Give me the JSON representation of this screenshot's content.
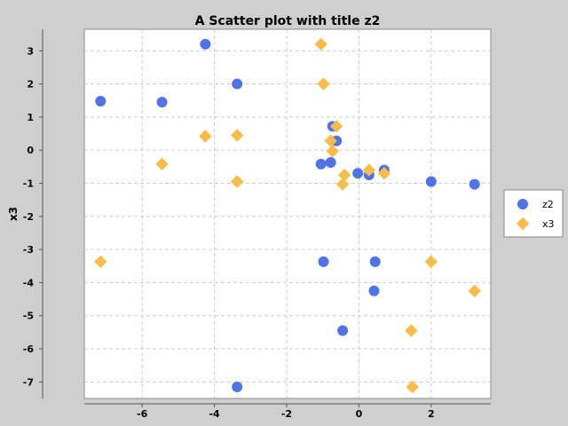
{
  "chart_data": {
    "type": "scatter",
    "title": "A Scatter plot with title z2",
    "xlabel": "",
    "ylabel": "x3",
    "xlim": [
      -7.6,
      3.65
    ],
    "ylim": [
      -7.5,
      3.65
    ],
    "xticks": [
      -6,
      -4,
      -2,
      0,
      2
    ],
    "yticks": [
      3,
      2,
      1,
      0,
      -1,
      -2,
      -3,
      -4,
      -5,
      -6,
      -7
    ],
    "grid": true,
    "legend_position": "right",
    "series": [
      {
        "name": "z2",
        "color": "#4f74e8",
        "marker": "circle",
        "points": [
          {
            "x": -7.15,
            "y": 1.48
          },
          {
            "x": -5.45,
            "y": 1.45
          },
          {
            "x": -4.25,
            "y": 3.2
          },
          {
            "x": -3.37,
            "y": 2.0
          },
          {
            "x": -3.37,
            "y": -7.15
          },
          {
            "x": -1.05,
            "y": -0.42
          },
          {
            "x": -0.98,
            "y": -3.37
          },
          {
            "x": -0.78,
            "y": -0.37
          },
          {
            "x": -0.73,
            "y": 0.72
          },
          {
            "x": -0.62,
            "y": 0.28
          },
          {
            "x": -0.45,
            "y": -5.45
          },
          {
            "x": -0.03,
            "y": -0.7
          },
          {
            "x": 0.28,
            "y": -0.75
          },
          {
            "x": 0.45,
            "y": -3.37
          },
          {
            "x": 0.42,
            "y": -4.25
          },
          {
            "x": 0.7,
            "y": -0.6
          },
          {
            "x": 2.0,
            "y": -0.95
          },
          {
            "x": 3.2,
            "y": -1.03
          }
        ]
      },
      {
        "name": "x3",
        "color": "#f7bc4a",
        "marker": "diamond",
        "points": [
          {
            "x": -7.15,
            "y": -3.37
          },
          {
            "x": -5.45,
            "y": -0.42
          },
          {
            "x": -4.25,
            "y": 0.42
          },
          {
            "x": -3.37,
            "y": 0.45
          },
          {
            "x": -3.37,
            "y": -0.95
          },
          {
            "x": -1.05,
            "y": 3.2
          },
          {
            "x": -0.98,
            "y": 2.0
          },
          {
            "x": -0.78,
            "y": 0.28
          },
          {
            "x": -0.73,
            "y": -0.03
          },
          {
            "x": -0.62,
            "y": 0.72
          },
          {
            "x": -0.45,
            "y": -1.03
          },
          {
            "x": -0.4,
            "y": -0.75
          },
          {
            "x": 0.28,
            "y": -0.6
          },
          {
            "x": 0.7,
            "y": -0.7
          },
          {
            "x": 1.45,
            "y": -5.45
          },
          {
            "x": 1.48,
            "y": -7.15
          },
          {
            "x": 2.0,
            "y": -3.37
          },
          {
            "x": 3.2,
            "y": -4.25
          }
        ]
      }
    ]
  }
}
